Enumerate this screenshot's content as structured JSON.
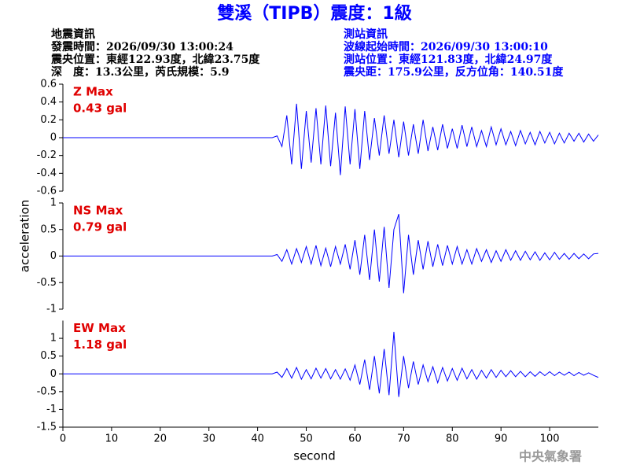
{
  "title": "雙溪（TIPB）震度：1級",
  "event_info": [
    "地震資訊",
    "發震時間：2026/09/30 13:00:24",
    "震央位置：東經122.93度，北緯23.75度",
    "深　度：13.3公里，芮氏規模：5.9"
  ],
  "station_info": [
    "測站資訊",
    "波線起始時間：2026/09/30 13:00:10",
    "測站位置：東經121.83度，北緯24.97度",
    "震央距：175.9公里，反方位角：140.51度"
  ],
  "y_label": "acceleration",
  "x_label": "second",
  "agency": "中央氣象署",
  "chart_data": [
    {
      "type": "line",
      "annotations": [
        "Z Max",
        "0.43 gal"
      ],
      "color": "#0000ff",
      "x": [
        0,
        43,
        44,
        45,
        46,
        47,
        48,
        49,
        50,
        51,
        52,
        53,
        54,
        55,
        56,
        57,
        58,
        59,
        60,
        61,
        62,
        63,
        64,
        65,
        66,
        67,
        68,
        69,
        70,
        71,
        72,
        73,
        74,
        75,
        76,
        77,
        78,
        79,
        80,
        81,
        82,
        83,
        84,
        85,
        86,
        87,
        88,
        89,
        90,
        91,
        92,
        93,
        94,
        95,
        96,
        97,
        98,
        99,
        100,
        101,
        102,
        103,
        104,
        105,
        106,
        107,
        108,
        109,
        110
      ],
      "values": [
        0,
        0,
        0.02,
        -0.1,
        0.25,
        -0.3,
        0.38,
        -0.35,
        0.3,
        -0.28,
        0.33,
        -0.3,
        0.36,
        -0.32,
        0.28,
        -0.42,
        0.35,
        -0.3,
        0.32,
        -0.35,
        0.3,
        -0.25,
        0.22,
        -0.2,
        0.25,
        -0.18,
        0.2,
        -0.22,
        0.18,
        -0.2,
        0.15,
        -0.18,
        0.2,
        -0.15,
        0.12,
        -0.14,
        0.15,
        -0.12,
        0.1,
        -0.12,
        0.14,
        -0.1,
        0.12,
        -0.1,
        0.08,
        -0.1,
        0.12,
        -0.08,
        0.1,
        -0.08,
        0.07,
        -0.09,
        0.08,
        -0.07,
        0.06,
        -0.08,
        0.07,
        -0.06,
        0.06,
        -0.07,
        0.05,
        -0.06,
        0.05,
        -0.04,
        0.05,
        -0.05,
        0.04,
        -0.04,
        0.03
      ],
      "xlim": [
        0,
        110
      ],
      "ylim": [
        -0.6,
        0.6
      ],
      "yticks": [
        -0.6,
        -0.4,
        -0.2,
        0,
        0.2,
        0.4,
        0.6
      ]
    },
    {
      "type": "line",
      "annotations": [
        "NS Max",
        "0.79 gal"
      ],
      "color": "#0000ff",
      "x": [
        0,
        43,
        44,
        45,
        46,
        47,
        48,
        49,
        50,
        51,
        52,
        53,
        54,
        55,
        56,
        57,
        58,
        59,
        60,
        61,
        62,
        63,
        64,
        65,
        66,
        67,
        68,
        69,
        70,
        71,
        72,
        73,
        74,
        75,
        76,
        77,
        78,
        79,
        80,
        81,
        82,
        83,
        84,
        85,
        86,
        87,
        88,
        89,
        90,
        91,
        92,
        93,
        94,
        95,
        96,
        97,
        98,
        99,
        100,
        101,
        102,
        103,
        104,
        105,
        106,
        107,
        108,
        109,
        110
      ],
      "values": [
        0,
        0,
        0.03,
        -0.1,
        0.12,
        -0.15,
        0.14,
        -0.12,
        0.18,
        -0.15,
        0.2,
        -0.18,
        0.15,
        -0.2,
        0.18,
        -0.15,
        0.22,
        -0.25,
        0.3,
        -0.35,
        0.4,
        -0.45,
        0.5,
        -0.48,
        0.55,
        -0.6,
        0.5,
        0.79,
        -0.7,
        0.4,
        -0.35,
        0.3,
        -0.25,
        0.28,
        -0.2,
        0.22,
        -0.18,
        0.2,
        -0.15,
        0.18,
        -0.15,
        0.12,
        -0.15,
        0.14,
        -0.1,
        0.12,
        -0.12,
        0.1,
        -0.1,
        0.12,
        -0.08,
        0.1,
        -0.08,
        0.09,
        -0.07,
        0.08,
        -0.08,
        0.06,
        -0.07,
        0.07,
        -0.06,
        0.05,
        -0.06,
        0.05,
        -0.05,
        0.04,
        -0.05,
        0.04,
        0.05
      ],
      "xlim": [
        0,
        110
      ],
      "ylim": [
        -1,
        1
      ],
      "yticks": [
        -1,
        -0.5,
        0,
        0.5,
        1
      ]
    },
    {
      "type": "line",
      "annotations": [
        "EW Max",
        "1.18 gal"
      ],
      "color": "#0000ff",
      "x": [
        0,
        43,
        44,
        45,
        46,
        47,
        48,
        49,
        50,
        51,
        52,
        53,
        54,
        55,
        56,
        57,
        58,
        59,
        60,
        61,
        62,
        63,
        64,
        65,
        66,
        67,
        68,
        69,
        70,
        71,
        72,
        73,
        74,
        75,
        76,
        77,
        78,
        79,
        80,
        81,
        82,
        83,
        84,
        85,
        86,
        87,
        88,
        89,
        90,
        91,
        92,
        93,
        94,
        95,
        96,
        97,
        98,
        99,
        100,
        101,
        102,
        103,
        104,
        105,
        106,
        107,
        108,
        109,
        110
      ],
      "values": [
        0,
        0,
        0.05,
        -0.1,
        0.15,
        -0.12,
        0.18,
        -0.15,
        0.12,
        -0.14,
        0.16,
        -0.12,
        0.15,
        -0.14,
        0.12,
        -0.15,
        0.14,
        -0.18,
        0.25,
        -0.3,
        0.4,
        -0.45,
        0.5,
        -0.55,
        0.7,
        -0.6,
        1.18,
        -0.65,
        0.5,
        -0.4,
        0.35,
        -0.3,
        0.25,
        -0.22,
        0.2,
        -0.25,
        0.18,
        -0.2,
        0.15,
        -0.18,
        0.16,
        -0.14,
        0.12,
        -0.15,
        0.1,
        -0.12,
        0.12,
        -0.1,
        0.1,
        -0.08,
        0.09,
        -0.08,
        0.07,
        -0.08,
        0.06,
        -0.07,
        0.06,
        -0.05,
        0.06,
        -0.05,
        0.05,
        -0.04,
        0.05,
        -0.05,
        0.04,
        -0.04,
        0.03,
        -0.04,
        -0.1
      ],
      "xlim": [
        0,
        110
      ],
      "ylim": [
        -1.5,
        1.5
      ],
      "yticks": [
        -1.5,
        -1,
        -0.5,
        0,
        0.5,
        1
      ],
      "xticks": [
        0,
        10,
        20,
        30,
        40,
        50,
        60,
        70,
        80,
        90,
        100
      ]
    }
  ]
}
